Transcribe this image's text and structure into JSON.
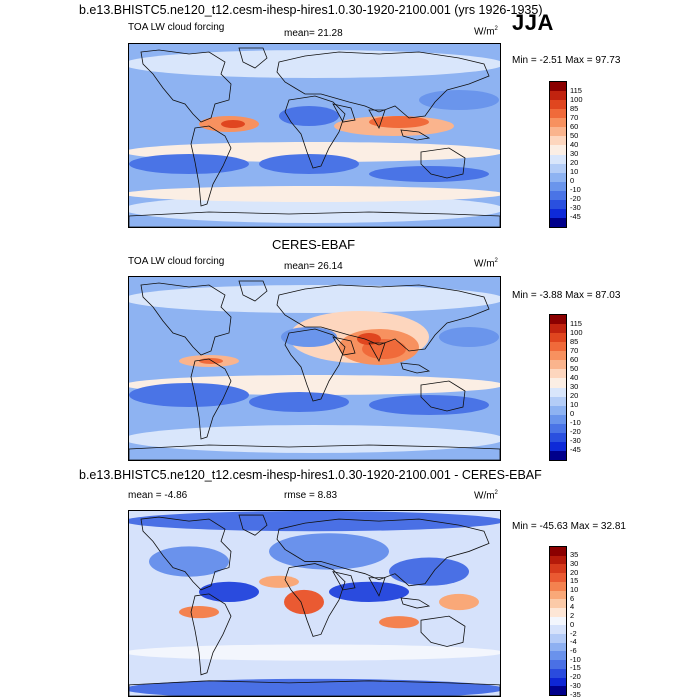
{
  "top_title": "b.e13.BHISTC5.ne120_t12.cesm-ihesp-hires1.0.30-1920-2100.001 (yrs 1926-1935)",
  "season": "JJA",
  "middle_title": "CERES-EBAF",
  "diff_title": "b.e13.BHISTC5.ne120_t12.cesm-ihesp-hires1.0.30-1920-2100.001 - CERES-EBAF",
  "panels": [
    {
      "left_label": "TOA LW cloud forcing",
      "center_label": "mean=  21.28",
      "units": "W/m",
      "units_sup": "2",
      "minmax": "Min =  -2.51 Max =  97.73",
      "colorbar": {
        "levels": [
          "115",
          "100",
          "85",
          "70",
          "60",
          "50",
          "40",
          "30",
          "20",
          "10",
          "0",
          "-10",
          "-20",
          "-30",
          "-45"
        ],
        "colors": [
          "#8b0000",
          "#c1230f",
          "#e0461f",
          "#f06a3a",
          "#f7915f",
          "#fab48d",
          "#fdd6be",
          "#fbeee4",
          "#d9e6fb",
          "#b4cdf7",
          "#8eb3f2",
          "#6a95ec",
          "#4a74e6",
          "#2a50df",
          "#0e2ad8",
          "#00008b"
        ]
      }
    },
    {
      "left_label": "TOA LW cloud forcing",
      "center_label": "mean=  26.14",
      "units": "W/m",
      "units_sup": "2",
      "minmax": "Min =  -3.88 Max =  87.03",
      "colorbar": {
        "levels": [
          "115",
          "100",
          "85",
          "70",
          "60",
          "50",
          "40",
          "30",
          "20",
          "10",
          "0",
          "-10",
          "-20",
          "-30",
          "-45"
        ],
        "colors": [
          "#8b0000",
          "#c1230f",
          "#e0461f",
          "#f06a3a",
          "#f7915f",
          "#fab48d",
          "#fdd6be",
          "#fbeee4",
          "#d9e6fb",
          "#b4cdf7",
          "#8eb3f2",
          "#6a95ec",
          "#4a74e6",
          "#2a50df",
          "#0e2ad8",
          "#00008b"
        ]
      }
    },
    {
      "left_label": "mean =  -4.86",
      "center_label": "rmse =   8.83",
      "units": "W/m",
      "units_sup": "2",
      "minmax": "Min = -45.63 Max =  32.81",
      "colorbar": {
        "levels": [
          "35",
          "30",
          "20",
          "15",
          "10",
          "6",
          "4",
          "2",
          "0",
          "-2",
          "-4",
          "-6",
          "-10",
          "-15",
          "-20",
          "-30",
          "-35"
        ],
        "colors": [
          "#8b0000",
          "#b51a0a",
          "#d63a1c",
          "#ea5a32",
          "#f4824f",
          "#f9a878",
          "#fbcaa8",
          "#fde6d6",
          "#f3f6fd",
          "#d6e2fb",
          "#b4cbf7",
          "#8eb0f1",
          "#6a92ec",
          "#4a70e5",
          "#2a4bde",
          "#0e26d5",
          "#00008b"
        ]
      }
    }
  ]
}
